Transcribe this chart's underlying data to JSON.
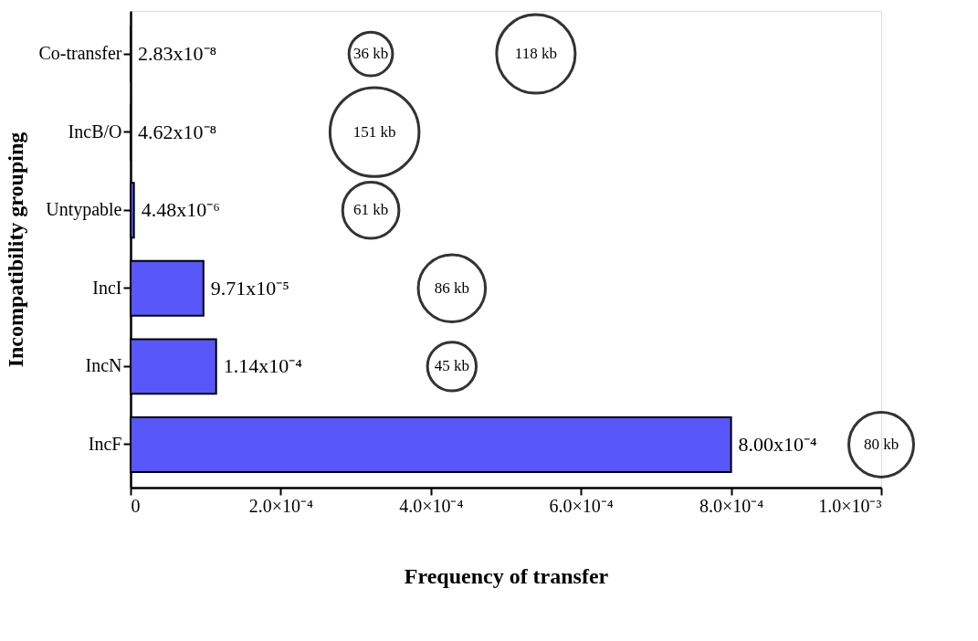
{
  "chart_data": {
    "type": "bar",
    "orientation": "horizontal",
    "xlabel": "Frequency of transfer",
    "ylabel": "Incompatibility grouping",
    "categories": [
      "Co-transfer",
      "IncB/O",
      "Untypable",
      "IncI",
      "IncN",
      "IncF"
    ],
    "series": [
      {
        "color": "#5757fa",
        "values": [
          2.83e-08,
          4.62e-08,
          4.48e-06,
          9.71e-05,
          0.000114,
          0.0008
        ],
        "value_labels": [
          "2.83x10⁻⁸",
          "4.62x10⁻⁸",
          "4.48x10⁻⁶",
          "9.71x10⁻⁵",
          "1.14x10⁻⁴",
          "8.00x10⁻⁴"
        ]
      },
      {
        "type": "bubble",
        "color": "#333333",
        "values": [
          0.00032,
          0.000325,
          0.00032,
          0.000428,
          0.000428,
          0.001
        ],
        "sizes": [
          0.24,
          1,
          0.4,
          0.57,
          0.3,
          0.53
        ]
      },
      {
        "type": "bubble",
        "color": "#333333",
        "values": [
          0.00054,
          null,
          null,
          null,
          null,
          null
        ],
        "sizes": [
          0.78,
          null,
          null,
          null,
          null,
          null
        ]
      }
    ],
    "annotations": [
      {
        "text": "36 kb",
        "x": 0.00032,
        "y": "Co-transfer"
      },
      {
        "text": "118 kb",
        "x": 0.00054,
        "y": "Co-transfer"
      },
      {
        "text": "151 kb",
        "x": 0.000325,
        "y": "IncB/O"
      },
      {
        "text": "61 kb",
        "x": 0.00032,
        "y": "Untypable"
      },
      {
        "text": "86 kb",
        "x": 0.000428,
        "y": "IncI"
      },
      {
        "text": "45 kb",
        "x": 0.000428,
        "y": "IncN"
      },
      {
        "text": "80 kb",
        "x": 0.001,
        "y": "IncF"
      }
    ],
    "xlim": [
      0,
      0.001
    ],
    "xticks": [
      0,
      {
        "value": 0.0002,
        "label": "2.0×10⁻⁴"
      },
      {
        "value": 0.0004,
        "label": "4.0×10⁻⁴"
      },
      {
        "value": 0.0006,
        "label": "6.0×10⁻⁴"
      },
      {
        "value": 0.0008,
        "label": "8.0×10⁻⁴"
      },
      {
        "value": 0.001,
        "label": "1.0×10⁻³"
      }
    ]
  }
}
